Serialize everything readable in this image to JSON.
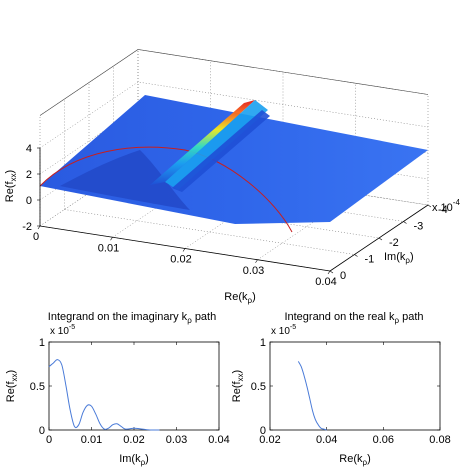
{
  "chart_data": [
    {
      "type": "surface",
      "xlabel": "Re(k",
      "xlabel_sub": "ρ",
      "xlabel_close": ")",
      "ylabel": "Im(k",
      "ylabel_sub": "ρ",
      "ylabel_close": ")",
      "zlabel": "Re(f",
      "zlabel_sub": "xx",
      "zlabel_close": ")",
      "x_ticks": [
        "0",
        "0.01",
        "0.02",
        "0.03",
        "0.04"
      ],
      "y_ticks": [
        "0",
        "-1",
        "-2",
        "-3",
        "-4"
      ],
      "y_exponent": "x 10",
      "y_exponent_power": "-4",
      "z_ticks": [
        "-2",
        "0",
        "2",
        "4"
      ],
      "xlim": [
        0,
        0.04
      ],
      "ylim": [
        0,
        -0.0004
      ],
      "zlim": [
        -2,
        4
      ],
      "grid": true,
      "ridge_x": [
        0.021,
        0.026
      ],
      "ridge_peak": 3.8,
      "colormap": [
        "#1f4fd6",
        "#1aa0f0",
        "#35e0c0",
        "#f3f01c",
        "#ff7a1a",
        "#e01818"
      ],
      "path_color": "#c81e1e"
    },
    {
      "type": "line",
      "title": "Integrand on the imaginary k",
      "title_sub": "ρ",
      "title_tail": "path",
      "xlabel": "Im(k",
      "xlabel_sub": "ρ",
      "xlabel_close": ")",
      "ylabel": "Re(f",
      "ylabel_sub": "xx",
      "ylabel_close": ")",
      "y_exponent": "x 10",
      "y_exponent_power": "-5",
      "x_ticks": [
        "0",
        "0.01",
        "0.02",
        "0.03",
        "0.04"
      ],
      "y_ticks": [
        "0",
        "0.5",
        "1"
      ],
      "xlim": [
        0,
        0.04
      ],
      "ylim": [
        0,
        1
      ],
      "line_color": "#4a7bd8",
      "x": [
        0,
        0.001,
        0.002,
        0.003,
        0.004,
        0.005,
        0.006,
        0.007,
        0.008,
        0.009,
        0.01,
        0.011,
        0.012,
        0.013,
        0.014,
        0.015,
        0.016,
        0.017,
        0.018,
        0.02,
        0.022,
        0.024,
        0.026
      ],
      "y": [
        0.72,
        0.76,
        0.8,
        0.74,
        0.5,
        0.22,
        0.04,
        0.06,
        0.2,
        0.28,
        0.27,
        0.18,
        0.07,
        0.01,
        0.02,
        0.06,
        0.07,
        0.04,
        0.01,
        0.02,
        0.01,
        0.0,
        0.0
      ]
    },
    {
      "type": "line",
      "title": "Integrand on the real k",
      "title_sub": "ρ",
      "title_tail": "path",
      "xlabel": "Re(k",
      "xlabel_sub": "ρ",
      "xlabel_close": ")",
      "ylabel": "Re(f",
      "ylabel_sub": "xx",
      "ylabel_close": ")",
      "y_exponent": "x 10",
      "y_exponent_power": "-5",
      "x_ticks": [
        "0.02",
        "0.04",
        "0.06",
        "0.08"
      ],
      "y_ticks": [
        "0",
        "0.5",
        "1"
      ],
      "xlim": [
        0.02,
        0.08
      ],
      "ylim": [
        0,
        1
      ],
      "line_color": "#4a7bd8",
      "x": [
        0.03,
        0.031,
        0.032,
        0.033,
        0.034,
        0.035,
        0.036,
        0.037,
        0.038,
        0.039,
        0.04
      ],
      "y": [
        0.78,
        0.72,
        0.62,
        0.5,
        0.36,
        0.22,
        0.12,
        0.06,
        0.02,
        0.01,
        0.0
      ]
    }
  ]
}
